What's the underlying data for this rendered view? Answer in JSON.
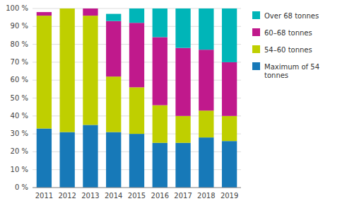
{
  "chart_data": {
    "type": "bar",
    "stacked": true,
    "categories": [
      "2011",
      "2012",
      "2013",
      "2014",
      "2015",
      "2016",
      "2017",
      "2018",
      "2019"
    ],
    "series": [
      {
        "name": "Maximum of 54\ntonnes",
        "color": "#1779b8",
        "values": [
          33,
          31,
          35,
          31,
          30,
          25,
          25,
          28,
          26
        ]
      },
      {
        "name": "54–60 tonnes",
        "color": "#bfcf00",
        "values": [
          63,
          69,
          61,
          31,
          26,
          21,
          15,
          15,
          14
        ]
      },
      {
        "name": "60–68 tonnes",
        "color": "#c0198c",
        "values": [
          2,
          0,
          4,
          31,
          36,
          38,
          38,
          34,
          30
        ]
      },
      {
        "name": "Over 68 tonnes",
        "color": "#00b5b8",
        "values": [
          0,
          0,
          0,
          4,
          8,
          16,
          22,
          23,
          30
        ]
      }
    ],
    "ylim": [
      0,
      100
    ],
    "yticks": [
      {
        "value": 0,
        "label": "0 %"
      },
      {
        "value": 10,
        "label": "10 %"
      },
      {
        "value": 20,
        "label": "20 %"
      },
      {
        "value": 30,
        "label": "30 %"
      },
      {
        "value": 40,
        "label": "40 %"
      },
      {
        "value": 50,
        "label": "50 %"
      },
      {
        "value": 60,
        "label": "60 %"
      },
      {
        "value": 70,
        "label": "70 %"
      },
      {
        "value": 80,
        "label": "80 %"
      },
      {
        "value": 90,
        "label": "90 %"
      },
      {
        "value": 100,
        "label": "100 %"
      }
    ],
    "grid": true,
    "legend": "right"
  }
}
